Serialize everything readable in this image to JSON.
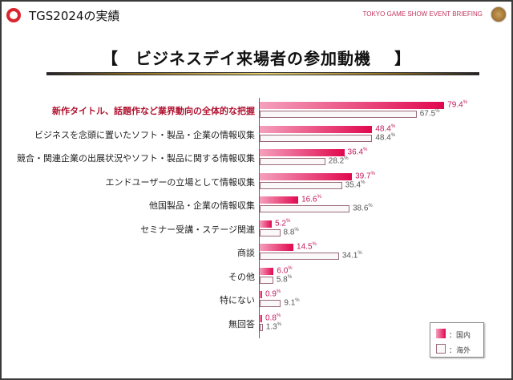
{
  "header": {
    "title": "TGS2024の実績",
    "briefing": "TOKYO GAME SHOW EVENT BRIEFING"
  },
  "heading": "【　ビジネスデイ来場者の参加動機　 】",
  "chart_data": {
    "type": "bar",
    "orientation": "horizontal",
    "title": "ビジネスデイ来場者の参加動機",
    "unit": "%",
    "categories": [
      "新作タイトル、話題作など業界動向の全体的な把握",
      "ビジネスを念頭に置いたソフト・製品・企業の情報収集",
      "競合・関連企業の出展状況やソフト・製品に関する情報収集",
      "エンドユーザーの立場として情報収集",
      "他国製品・企業の情報収集",
      "セミナー受講・ステージ関連",
      "商談",
      "その他",
      "特にない",
      "無回答"
    ],
    "highlight_index": 0,
    "series": [
      {
        "name": "：国内",
        "color": "#e0084f",
        "values": [
          79.4,
          48.4,
          36.4,
          39.7,
          16.6,
          5.2,
          14.5,
          6.0,
          0.9,
          0.8
        ]
      },
      {
        "name": "：海外",
        "color": "#fbf8fa",
        "values": [
          67.5,
          48.4,
          28.2,
          35.4,
          38.6,
          8.8,
          34.1,
          5.8,
          9.1,
          1.3
        ]
      }
    ],
    "legend": "bottom-right",
    "xlim": [
      0,
      100
    ]
  }
}
